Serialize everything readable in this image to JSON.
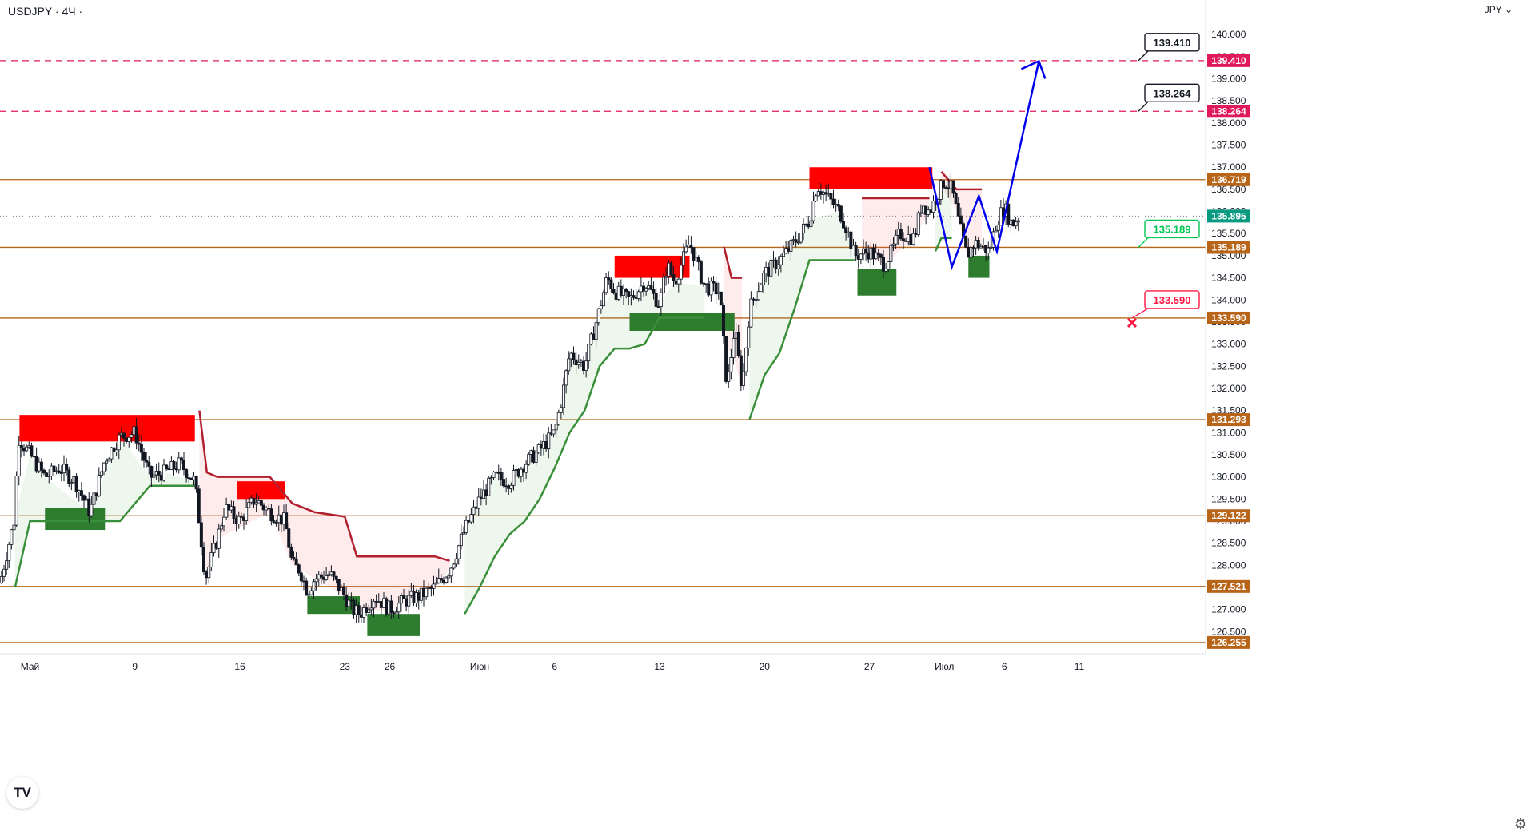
{
  "header": {
    "symbol": "USDJPY",
    "timeframe": "4Ч",
    "currency": "JPY"
  },
  "logo": "TV",
  "icons": {
    "settings": "gear-icon",
    "chevron": "chevron-down-icon"
  },
  "colors": {
    "bullish": "#000000",
    "bearish": "#000000",
    "support_box": "#2e7d2e",
    "resistance_box": "#ff0000",
    "trend_up": "#3a8f3a",
    "trend_down": "#b22030",
    "level_line": "#b8651a",
    "target_line": "#e0195a",
    "forecast": "#0000ee"
  },
  "chart_data": {
    "type": "candlestick",
    "symbol": "USDJPY",
    "timeframe": "4Ч",
    "ylim": [
      126.0,
      140.6
    ],
    "y_ticks": [
      "126.500",
      "127.000",
      "127.500",
      "128.000",
      "128.500",
      "129.000",
      "129.500",
      "130.000",
      "130.500",
      "131.000",
      "131.500",
      "132.000",
      "132.500",
      "133.000",
      "133.500",
      "134.000",
      "134.500",
      "135.000",
      "135.500",
      "136.000",
      "136.500",
      "137.000",
      "137.500",
      "138.000",
      "138.500",
      "139.000",
      "139.500",
      "140.000"
    ],
    "x_ticks": [
      {
        "label": "Май",
        "day": 2
      },
      {
        "label": "9",
        "day": 9
      },
      {
        "label": "16",
        "day": 16
      },
      {
        "label": "23",
        "day": 23
      },
      {
        "label": "26",
        "day": 26
      },
      {
        "label": "Июн",
        "day": 32
      },
      {
        "label": "6",
        "day": 37
      },
      {
        "label": "13",
        "day": 44
      },
      {
        "label": "20",
        "day": 51
      },
      {
        "label": "27",
        "day": 58
      },
      {
        "label": "Июл",
        "day": 63
      },
      {
        "label": "6",
        "day": 67
      },
      {
        "label": "11",
        "day": 72
      }
    ],
    "price_path": [
      [
        0,
        127.6
      ],
      [
        1,
        129.1
      ],
      [
        1.2,
        130.9
      ],
      [
        2,
        130.5
      ],
      [
        3,
        130.0
      ],
      [
        4,
        130.2
      ],
      [
        5,
        129.9
      ],
      [
        6,
        129.2
      ],
      [
        7,
        130.4
      ],
      [
        8,
        130.9
      ],
      [
        9,
        131.0
      ],
      [
        10,
        130.0
      ],
      [
        11,
        130.1
      ],
      [
        12,
        130.3
      ],
      [
        13,
        129.9
      ],
      [
        13.7,
        127.7
      ],
      [
        14.5,
        128.6
      ],
      [
        15,
        129.3
      ],
      [
        16,
        129.0
      ],
      [
        17,
        129.5
      ],
      [
        18,
        129.2
      ],
      [
        19,
        129.0
      ],
      [
        19.5,
        128.0
      ],
      [
        20,
        127.9
      ],
      [
        20.5,
        127.4
      ],
      [
        21,
        127.7
      ],
      [
        22,
        127.8
      ],
      [
        23,
        127.3
      ],
      [
        23.5,
        127.0
      ],
      [
        24,
        126.9
      ],
      [
        25,
        127.3
      ],
      [
        26,
        127.0
      ],
      [
        27,
        127.2
      ],
      [
        28,
        127.3
      ],
      [
        29,
        127.5
      ],
      [
        30,
        127.9
      ],
      [
        31,
        128.8
      ],
      [
        32,
        129.5
      ],
      [
        33,
        130.0
      ],
      [
        34,
        129.9
      ],
      [
        35,
        130.3
      ],
      [
        36,
        130.6
      ],
      [
        37,
        131.0
      ],
      [
        37.5,
        131.8
      ],
      [
        38,
        132.8
      ],
      [
        39,
        132.5
      ],
      [
        40,
        133.8
      ],
      [
        40.5,
        134.5
      ],
      [
        41,
        134.2
      ],
      [
        42,
        134.0
      ],
      [
        43,
        134.4
      ],
      [
        44,
        133.9
      ],
      [
        44.5,
        134.8
      ],
      [
        45,
        134.4
      ],
      [
        46,
        135.3
      ],
      [
        47,
        134.3
      ],
      [
        48,
        134.2
      ],
      [
        48.5,
        132.0
      ],
      [
        49,
        133.4
      ],
      [
        49.5,
        132.0
      ],
      [
        50,
        133.8
      ],
      [
        51,
        134.6
      ],
      [
        52,
        134.9
      ],
      [
        53,
        135.3
      ],
      [
        54,
        135.8
      ],
      [
        54.5,
        136.6
      ],
      [
        55,
        136.4
      ],
      [
        56,
        136.0
      ],
      [
        56.5,
        135.6
      ],
      [
        57,
        135.0
      ],
      [
        58,
        135.1
      ],
      [
        59,
        134.8
      ],
      [
        59.5,
        135.1
      ],
      [
        60,
        135.5
      ],
      [
        61,
        135.4
      ],
      [
        61.5,
        136.2
      ],
      [
        62,
        136.0
      ],
      [
        63,
        136.7
      ],
      [
        63.5,
        136.5
      ],
      [
        64,
        135.7
      ],
      [
        64.5,
        135.0
      ],
      [
        65,
        135.3
      ],
      [
        66,
        135.1
      ],
      [
        66.5,
        135.8
      ],
      [
        67,
        136.1
      ],
      [
        67.5,
        135.7
      ],
      [
        68,
        135.9
      ]
    ],
    "current_price": 135.895,
    "levels": [
      {
        "price": 136.719,
        "label": "136.719",
        "style": "solid"
      },
      {
        "price": 135.189,
        "label": "135.189",
        "style": "solid"
      },
      {
        "price": 133.59,
        "label": "133.590",
        "style": "solid"
      },
      {
        "price": 131.293,
        "label": "131.293",
        "style": "solid"
      },
      {
        "price": 129.122,
        "label": "129.122",
        "style": "solid"
      },
      {
        "price": 127.521,
        "label": "127.521",
        "style": "solid"
      },
      {
        "price": 126.255,
        "label": "126.255",
        "style": "solid"
      }
    ],
    "targets": [
      {
        "price": 139.41,
        "label": "139.410",
        "style": "dashed"
      },
      {
        "price": 138.264,
        "label": "138.264",
        "style": "dashed"
      }
    ],
    "callouts": [
      {
        "label": "139.410",
        "kind": "target",
        "price": 139.41
      },
      {
        "label": "138.264",
        "kind": "target",
        "price": 138.264
      },
      {
        "label": "135.189",
        "kind": "entry",
        "price": 135.189
      },
      {
        "label": "133.590",
        "kind": "stop",
        "price": 133.59
      }
    ],
    "resistance_zones": [
      {
        "x0": 1.3,
        "x1": 13.0,
        "y0": 130.8,
        "y1": 131.4
      },
      {
        "x0": 15.8,
        "x1": 19.0,
        "y0": 129.5,
        "y1": 129.9
      },
      {
        "x0": 41.0,
        "x1": 46.0,
        "y0": 134.5,
        "y1": 135.0
      },
      {
        "x0": 54.0,
        "x1": 62.2,
        "y0": 136.5,
        "y1": 137.0
      }
    ],
    "support_zones": [
      {
        "x0": 3.0,
        "x1": 7.0,
        "y0": 128.8,
        "y1": 129.3
      },
      {
        "x0": 20.5,
        "x1": 24.0,
        "y0": 126.9,
        "y1": 127.3
      },
      {
        "x0": 24.5,
        "x1": 28.0,
        "y0": 126.4,
        "y1": 126.9
      },
      {
        "x0": 42.0,
        "x1": 49.0,
        "y0": 133.3,
        "y1": 133.7
      },
      {
        "x0": 57.2,
        "x1": 59.8,
        "y0": 134.1,
        "y1": 134.7
      },
      {
        "x0": 64.6,
        "x1": 66.0,
        "y0": 134.5,
        "y1": 135.0
      }
    ],
    "trend_up_segments": [
      [
        [
          1,
          127.5
        ],
        [
          2,
          129.0
        ],
        [
          3,
          129.0
        ],
        [
          6,
          129.0
        ],
        [
          8,
          129.0
        ],
        [
          10,
          129.8
        ],
        [
          11,
          129.8
        ],
        [
          13,
          129.8
        ]
      ],
      [
        [
          31,
          126.9
        ],
        [
          32,
          127.5
        ],
        [
          33,
          128.2
        ],
        [
          34,
          128.7
        ],
        [
          35,
          129.0
        ],
        [
          36,
          129.5
        ],
        [
          37,
          130.2
        ],
        [
          38,
          131.0
        ],
        [
          39,
          131.5
        ],
        [
          40,
          132.5
        ],
        [
          41,
          132.9
        ],
        [
          42,
          132.9
        ],
        [
          43,
          133.0
        ],
        [
          44,
          133.6
        ],
        [
          45,
          133.6
        ],
        [
          47,
          133.6
        ]
      ],
      [
        [
          50,
          131.3
        ],
        [
          51,
          132.3
        ],
        [
          52,
          132.8
        ],
        [
          53,
          133.8
        ],
        [
          54,
          134.9
        ],
        [
          56,
          134.9
        ],
        [
          57,
          134.9
        ]
      ],
      [
        [
          62.4,
          135.1
        ],
        [
          62.8,
          135.4
        ],
        [
          63.5,
          135.4
        ]
      ]
    ],
    "trend_down_segments": [
      [
        [
          13.3,
          131.5
        ],
        [
          13.8,
          130.1
        ],
        [
          14.5,
          130.0
        ],
        [
          18,
          130.0
        ],
        [
          19.5,
          129.4
        ],
        [
          21,
          129.2
        ],
        [
          23,
          129.1
        ],
        [
          23.8,
          128.2
        ],
        [
          26,
          128.2
        ],
        [
          29,
          128.2
        ],
        [
          30,
          128.1
        ]
      ],
      [
        [
          48.3,
          135.2
        ],
        [
          48.8,
          134.5
        ],
        [
          49.5,
          134.5
        ]
      ],
      [
        [
          57.5,
          136.3
        ],
        [
          59,
          136.3
        ],
        [
          61,
          136.3
        ],
        [
          62,
          136.3
        ]
      ],
      [
        [
          62.8,
          136.9
        ],
        [
          63.8,
          136.5
        ],
        [
          64.5,
          136.5
        ],
        [
          65.5,
          136.5
        ]
      ]
    ],
    "forecast_path": [
      [
        62.0,
        137.0
      ],
      [
        63.5,
        134.75
      ],
      [
        65.3,
        136.35
      ],
      [
        66.5,
        135.1
      ],
      [
        69.3,
        139.4
      ]
    ]
  }
}
